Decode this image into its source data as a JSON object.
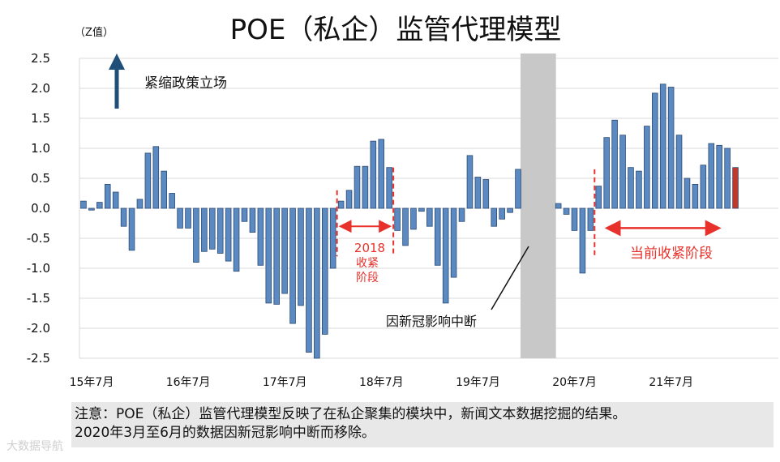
{
  "chart_data": {
    "type": "bar",
    "title": "POE（私企）监管代理模型",
    "ylabel": "（Z值）",
    "ylim": [
      -2.5,
      2.5
    ],
    "yticks": [
      "2.5",
      "2.0",
      "1.5",
      "1.0",
      "0.5",
      "0.0",
      "-0.5",
      "-1.0",
      "-1.5",
      "-2.0",
      "-2.5"
    ],
    "xticks": [
      "15年7月",
      "16年7月",
      "17年7月",
      "18年7月",
      "19年7月",
      "20年7月",
      "21年7月"
    ],
    "values": [
      0.12,
      -0.03,
      0.1,
      0.4,
      0.27,
      -0.3,
      -0.7,
      0.15,
      0.92,
      1.03,
      0.62,
      0.25,
      -0.33,
      -0.33,
      -0.9,
      -0.72,
      -0.68,
      -0.75,
      -0.88,
      -1.05,
      -0.22,
      -0.4,
      -0.95,
      -1.58,
      -1.6,
      -1.42,
      -1.92,
      -1.62,
      -2.4,
      -2.5,
      -2.1,
      -1.0,
      0.12,
      0.3,
      0.7,
      0.7,
      1.12,
      1.15,
      0.68,
      -0.37,
      -0.62,
      -0.35,
      -0.05,
      -0.3,
      -0.95,
      -1.58,
      -1.15,
      -0.22,
      0.88,
      0.52,
      0.48,
      -0.3,
      -0.18,
      -0.07,
      0.65,
      null,
      null,
      null,
      null,
      0.08,
      -0.1,
      -0.37,
      -1.08,
      -0.37,
      0.37,
      1.18,
      1.47,
      1.22,
      0.68,
      0.62,
      1.37,
      1.92,
      2.07,
      2.02,
      1.22,
      0.5,
      0.4,
      0.72,
      1.08,
      1.05,
      1.0,
      0.68
    ],
    "colors": {
      "bar": "#5b8ac3",
      "bar_border": "#2c4a72",
      "last_bar": "#c0392b",
      "accent": "#e8312b",
      "gap": "#c8c8c8",
      "arrow": "#1f4e79"
    },
    "annotations": {
      "tightening": "紧缩政策立场",
      "period_2018": [
        "2018",
        "收紧",
        "阶段"
      ],
      "covid": "因新冠影响中断",
      "current": "当前收紧阶段"
    }
  },
  "note": {
    "line1": "注意：POE（私企）监管代理模型反映了在私企聚集的模块中，新闻文本数据挖掘的结果。",
    "line2": "2020年3月至6月的数据因新冠影响中断而移除。"
  },
  "watermark": "大数据导航"
}
